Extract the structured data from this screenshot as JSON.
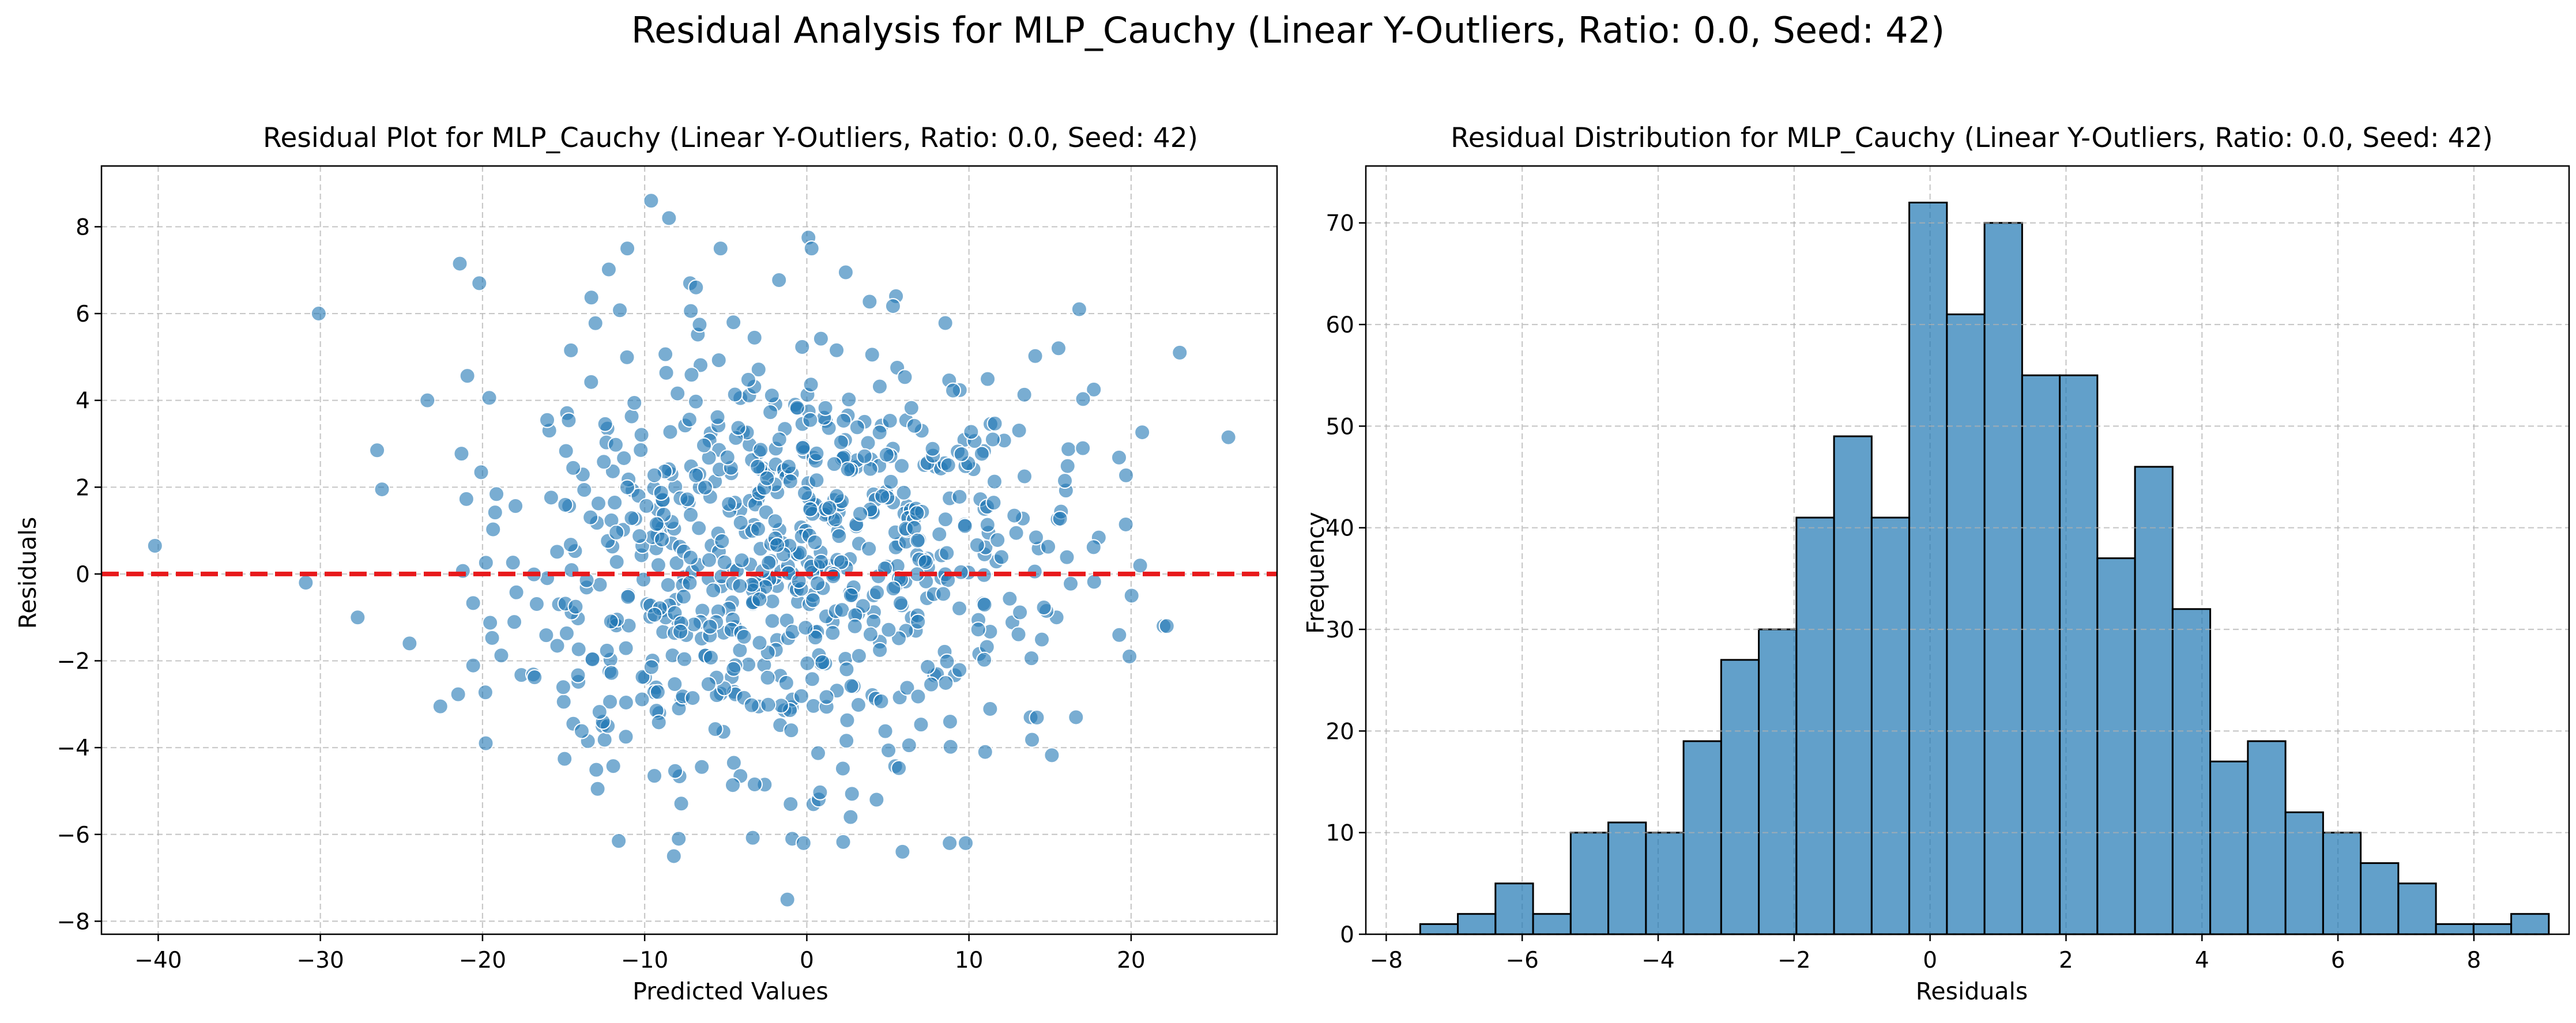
{
  "figure": {
    "suptitle": "Residual Analysis for MLP_Cauchy (Linear Y-Outliers, Ratio: 0.0, Seed: 42)"
  },
  "colors": {
    "scatter": "#1f77b4",
    "hist": "#1f77b4",
    "zero_line": "#e8191b",
    "grid": "#b0b0b0",
    "edge": "#000000"
  },
  "chart_data": [
    {
      "type": "scatter",
      "title": "Residual Plot for MLP_Cauchy (Linear Y-Outliers, Ratio: 0.0, Seed: 42)",
      "xlabel": "Predicted Values",
      "ylabel": "Residuals",
      "xlim": [
        -43.5,
        29
      ],
      "ylim": [
        -8.3,
        9.4
      ],
      "xticks": [
        -40,
        -30,
        -20,
        -10,
        0,
        10,
        20
      ],
      "yticks": [
        -8,
        -6,
        -4,
        -2,
        0,
        2,
        4,
        6,
        8
      ],
      "grid": true,
      "reference_line": {
        "y": 0,
        "style": "dashed"
      },
      "point_count": 800,
      "points_sample": [
        [
          -40.2,
          0.65
        ],
        [
          -30.9,
          -0.2
        ],
        [
          -30.1,
          6.0
        ],
        [
          -27.7,
          -1.0
        ],
        [
          -26.5,
          2.85
        ],
        [
          -26.2,
          1.95
        ],
        [
          -24.5,
          -1.6
        ],
        [
          -23.4,
          4.0
        ],
        [
          -22.6,
          -3.05
        ],
        [
          -21.4,
          7.15
        ],
        [
          -20.2,
          6.7
        ],
        [
          -19.8,
          -3.9
        ],
        [
          -9.6,
          8.6
        ],
        [
          -8.5,
          8.2
        ],
        [
          -7.2,
          6.7
        ],
        [
          0.1,
          7.75
        ],
        [
          2.4,
          6.95
        ],
        [
          5.5,
          6.4
        ],
        [
          16.8,
          6.1
        ],
        [
          23.0,
          5.1
        ],
        [
          26.0,
          3.15
        ],
        [
          17.7,
          4.25
        ],
        [
          22.0,
          -1.2
        ],
        [
          22.2,
          -1.2
        ],
        [
          19.9,
          -1.9
        ],
        [
          16.6,
          -3.3
        ],
        [
          13.8,
          -3.3
        ],
        [
          11.0,
          -4.1
        ],
        [
          9.8,
          -6.2
        ],
        [
          5.9,
          -6.4
        ],
        [
          -11.6,
          -6.15
        ],
        [
          -8.2,
          -6.5
        ],
        [
          -7.9,
          -6.1
        ],
        [
          -0.9,
          -6.1
        ],
        [
          -1.2,
          -7.5
        ],
        [
          -0.2,
          -6.2
        ],
        [
          -14.4,
          -3.45
        ],
        [
          -12.9,
          -4.95
        ],
        [
          -12.6,
          -3.5
        ],
        [
          -13.5,
          -3.85
        ],
        [
          -9.4,
          -4.65
        ],
        [
          -4.5,
          -4.35
        ],
        [
          2.7,
          -5.6
        ],
        [
          4.3,
          -5.2
        ],
        [
          -1.0,
          -5.3
        ]
      ],
      "point_distribution": {
        "x_mean": -1.5,
        "x_sd": 9.0,
        "y_mean": 0.5,
        "y_sd": 2.5
      }
    },
    {
      "type": "bar",
      "title": "Residual Distribution for MLP_Cauchy (Linear Y-Outliers, Ratio: 0.0, Seed: 42)",
      "xlabel": "Residuals",
      "ylabel": "Frequency",
      "xlim": [
        -8.3,
        9.4
      ],
      "ylim": [
        0,
        75.6
      ],
      "xticks": [
        -8,
        -6,
        -4,
        -2,
        0,
        2,
        4,
        6,
        8
      ],
      "yticks": [
        0,
        10,
        20,
        30,
        40,
        50,
        60,
        70
      ],
      "grid": true,
      "bin_start": -7.5,
      "bin_width": 0.5534,
      "values": [
        1,
        2,
        5,
        2,
        10,
        11,
        10,
        19,
        27,
        30,
        41,
        49,
        41,
        72,
        61,
        70,
        55,
        55,
        37,
        46,
        32,
        17,
        19,
        12,
        10,
        7,
        5,
        1,
        1,
        2
      ]
    }
  ]
}
